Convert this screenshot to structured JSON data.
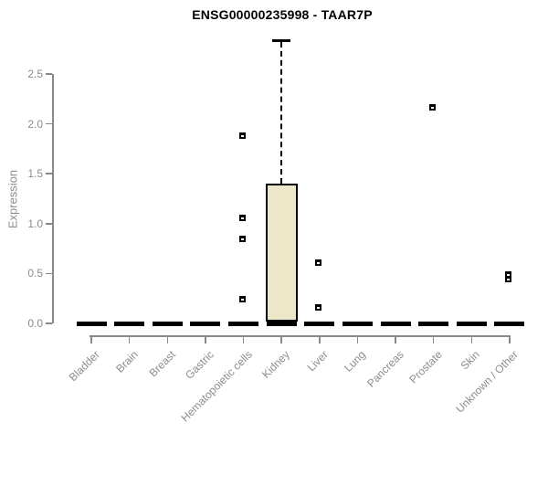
{
  "title": "ENSG00000235998 - TAAR7P",
  "colors": {
    "box_fill": "#ECE7C9",
    "box_border": "#000000",
    "axis": "#888888",
    "tick_text": "#8C8C8C",
    "title_text": "#000000"
  },
  "chart_data": {
    "type": "box",
    "title": "ENSG00000235998 - TAAR7P",
    "xlabel": "",
    "ylabel": "Expression",
    "ylim": [
      0,
      2.9
    ],
    "yticks": [
      "0.0",
      "0.5",
      "1.0",
      "1.5",
      "2.0",
      "2.5"
    ],
    "grid": false,
    "legend": null,
    "categories": [
      "Bladder",
      "Brain",
      "Breast",
      "Gastric",
      "Hematopoietic cells",
      "Kidney",
      "Liver",
      "Lung",
      "Pancreas",
      "Prostate",
      "Skin",
      "Unknown / Other"
    ],
    "series": [
      {
        "category": "Bladder",
        "q1": 0,
        "median": 0,
        "q3": 0,
        "whisker_low": 0,
        "whisker_high": 0,
        "outliers": []
      },
      {
        "category": "Brain",
        "q1": 0,
        "median": 0,
        "q3": 0,
        "whisker_low": 0,
        "whisker_high": 0,
        "outliers": []
      },
      {
        "category": "Breast",
        "q1": 0,
        "median": 0,
        "q3": 0,
        "whisker_low": 0,
        "whisker_high": 0,
        "outliers": []
      },
      {
        "category": "Gastric",
        "q1": 0,
        "median": 0,
        "q3": 0,
        "whisker_low": 0,
        "whisker_high": 0,
        "outliers": []
      },
      {
        "category": "Hematopoietic cells",
        "q1": 0,
        "median": 0,
        "q3": 0,
        "whisker_low": 0,
        "whisker_high": 0,
        "outliers": [
          1.88,
          1.06,
          0.85,
          0.24
        ]
      },
      {
        "category": "Kidney",
        "q1": 0,
        "median": 0.02,
        "q3": 1.4,
        "whisker_low": 0,
        "whisker_high": 2.84,
        "outliers": []
      },
      {
        "category": "Liver",
        "q1": 0,
        "median": 0,
        "q3": 0,
        "whisker_low": 0,
        "whisker_high": 0,
        "outliers": [
          0.61,
          0.16
        ]
      },
      {
        "category": "Lung",
        "q1": 0,
        "median": 0,
        "q3": 0,
        "whisker_low": 0,
        "whisker_high": 0,
        "outliers": []
      },
      {
        "category": "Pancreas",
        "q1": 0,
        "median": 0,
        "q3": 0,
        "whisker_low": 0,
        "whisker_high": 0,
        "outliers": []
      },
      {
        "category": "Prostate",
        "q1": 0,
        "median": 0,
        "q3": 0,
        "whisker_low": 0,
        "whisker_high": 0,
        "outliers": [
          2.17
        ]
      },
      {
        "category": "Skin",
        "q1": 0,
        "median": 0,
        "q3": 0,
        "whisker_low": 0,
        "whisker_high": 0,
        "outliers": []
      },
      {
        "category": "Unknown / Other",
        "q1": 0,
        "median": 0,
        "q3": 0,
        "whisker_low": 0,
        "whisker_high": 0,
        "outliers": [
          0.49,
          0.44
        ]
      }
    ]
  }
}
